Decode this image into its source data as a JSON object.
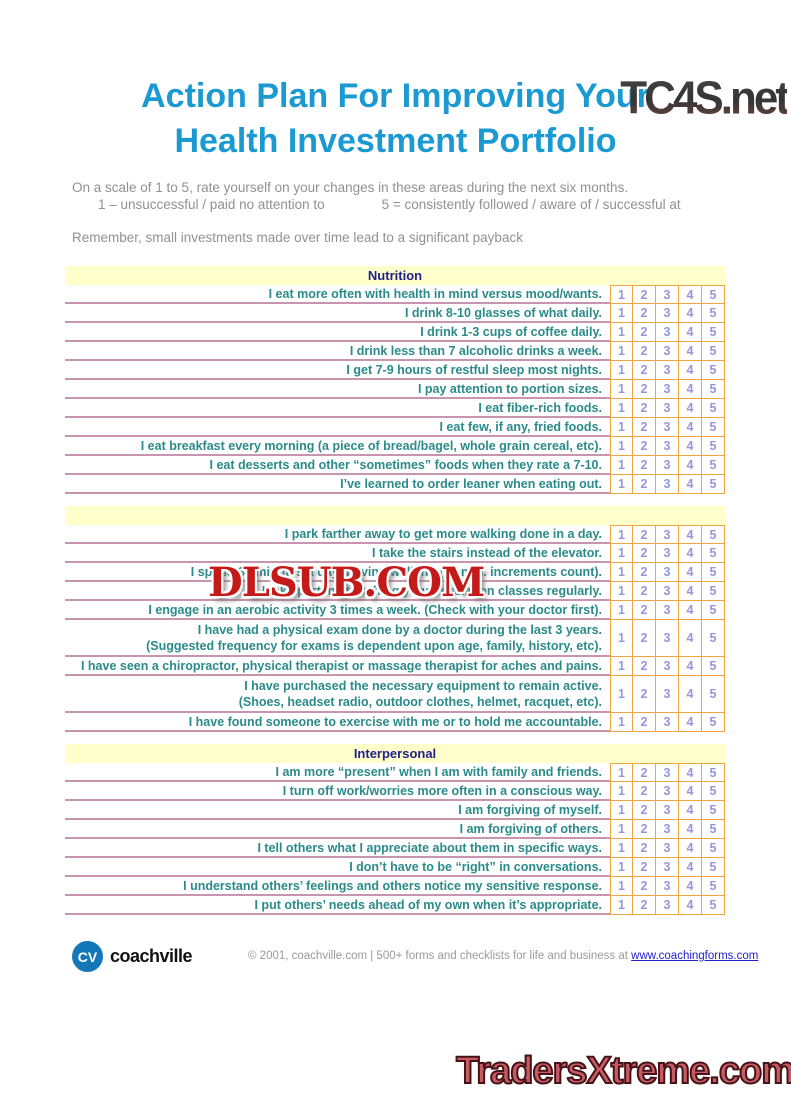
{
  "watermarks": {
    "top_logo": "TC4S.net",
    "overlay": "DLSUB.COM",
    "bottom": "TradersXtreme.com"
  },
  "header": {
    "title_line1": "Action Plan For Improving Your",
    "title_line2": "Health Investment Portfolio",
    "intro_line1": "On a scale of 1 to 5, rate yourself on your changes in these areas during the next six months.",
    "scale_low": "1 – unsuccessful / paid no attention to",
    "scale_high": "5 = consistently followed / aware of / successful at",
    "reminder": "Remember, small investments made over time lead to a significant payback"
  },
  "rating_scale": [
    "1",
    "2",
    "3",
    "4",
    "5"
  ],
  "sections": [
    {
      "title": "Nutrition",
      "rows": [
        {
          "text": "I eat more often with health in mind versus mood/wants."
        },
        {
          "text": "I drink 8-10 glasses of what daily."
        },
        {
          "text": "I drink 1-3 cups of coffee daily."
        },
        {
          "text": "I drink less than 7 alcoholic drinks a week."
        },
        {
          "text": "I get 7-9 hours of restful sleep most nights."
        },
        {
          "text": "I pay attention to portion sizes."
        },
        {
          "text": "I eat fiber-rich foods."
        },
        {
          "text": "I eat few, if any, fried foods."
        },
        {
          "text": "I eat breakfast every morning (a piece of bread/bagel, whole grain cereal, etc)."
        },
        {
          "text": "I eat desserts and other “sometimes” foods when they rate a 7-10."
        },
        {
          "text": "I’ve learned to order leaner when eating out."
        }
      ]
    },
    {
      "title": "",
      "rows": [
        {
          "text": "I park farther away to get more walking done in a day."
        },
        {
          "text": "I take the stairs instead of the elevator."
        },
        {
          "text": "I spend 30 minutes a day moving/walking (10 min. increments count)."
        },
        {
          "text": "I take part in stretching/yoga/relaxation classes regularly."
        },
        {
          "text": "I engage in an aerobic activity 3 times a week.  (Check with your doctor first)."
        },
        {
          "text": "I have had a physical exam done by a doctor during the last 3 years.",
          "text2": "(Suggested frequency for exams is dependent upon age, family, history, etc)."
        },
        {
          "text": "I have seen a chiropractor, physical therapist or massage therapist for aches and pains."
        },
        {
          "text": "I have purchased the necessary equipment to remain active.",
          "text2": "(Shoes, headset radio, outdoor clothes, helmet, racquet, etc)."
        },
        {
          "text": "I have found someone to exercise with me or to hold me accountable."
        }
      ]
    },
    {
      "title": "Interpersonal",
      "rows": [
        {
          "text": "I am more “present” when I am with family and friends."
        },
        {
          "text": "I turn off work/worries more often in a conscious way."
        },
        {
          "text": "I am forgiving of myself."
        },
        {
          "text": "I am forgiving of others."
        },
        {
          "text": "I tell others what I appreciate about them in specific ways."
        },
        {
          "text": "I don’t have to be “right” in conversations."
        },
        {
          "text": "I understand others’ feelings and others notice my sensitive response."
        },
        {
          "text": "I put others’ needs ahead of my own when it’s appropriate."
        }
      ]
    }
  ],
  "footer": {
    "logo_initials": "CV",
    "logo_name": "coachville",
    "copyright_text": "© 2001, coachville.com | 500+ forms and checklists for life and business at ",
    "link_text": "www.coachingforms.com"
  },
  "colors": {
    "title_blue": "#1b9ad2",
    "section_header_navy": "#21218e",
    "section_band_yellow": "#ffffcc",
    "row_label_teal": "#2b8a8a",
    "row_separator_pink": "#c795ae",
    "rating_border_orange": "#f0a541",
    "rating_number_purple": "#9597da",
    "overlay_watermark_red": "#c41a1a",
    "bottom_watermark_pink": "#c85a64",
    "cv_logo_blue": "#1478b8",
    "link_blue": "#2222cc"
  }
}
